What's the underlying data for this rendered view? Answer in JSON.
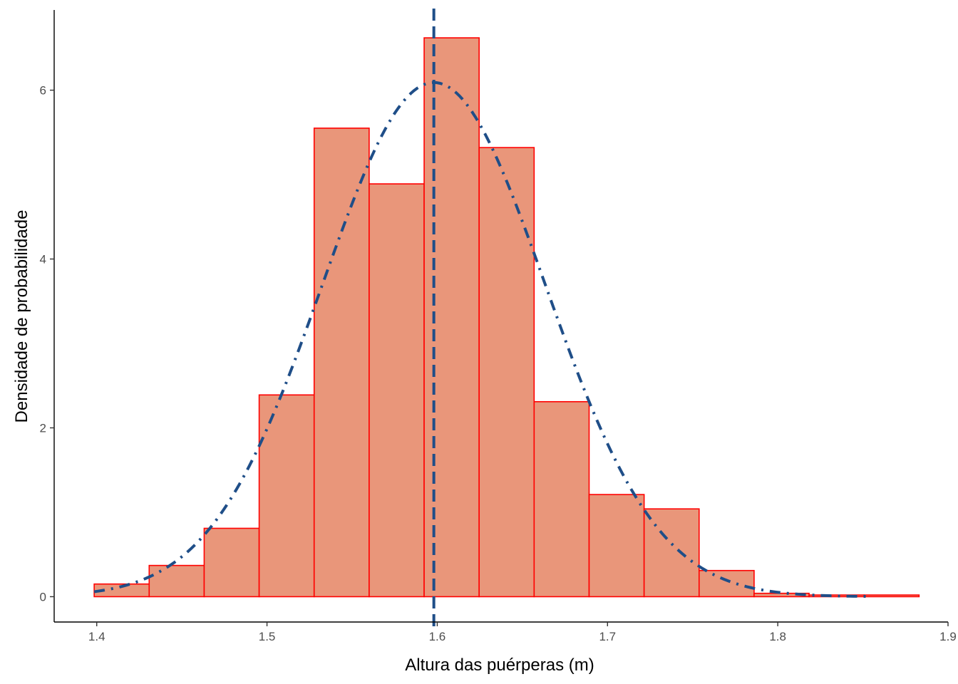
{
  "chart_data": {
    "type": "bar",
    "title": "",
    "xlabel": "Altura das puérperas (m)",
    "ylabel": "Densidade de probabilidade",
    "xlim": [
      1.375,
      1.9
    ],
    "ylim": [
      -0.3,
      6.95
    ],
    "x_ticks": [
      {
        "value": 1.4,
        "label": "1.4"
      },
      {
        "value": 1.5,
        "label": "1.5"
      },
      {
        "value": 1.6,
        "label": "1.6"
      },
      {
        "value": 1.7,
        "label": "1.7"
      },
      {
        "value": 1.8,
        "label": "1.8"
      },
      {
        "value": 1.9,
        "label": "1.9"
      }
    ],
    "y_ticks": [
      {
        "value": 0,
        "label": "0"
      },
      {
        "value": 2,
        "label": "2"
      },
      {
        "value": 4,
        "label": "4"
      },
      {
        "value": 6,
        "label": "6"
      }
    ],
    "histogram": {
      "bin_start": 1.3985,
      "bin_width": 0.0323,
      "densities": [
        0.15,
        0.37,
        0.81,
        2.39,
        5.55,
        4.89,
        6.62,
        5.32,
        2.31,
        1.21,
        1.04,
        0.31,
        0.04,
        0.02,
        0.02
      ],
      "fill": "#E9967A",
      "outline": "#FF0000"
    },
    "density_curve": {
      "mean": 1.598,
      "sd": 0.0655,
      "color": "#1F4E88",
      "linestyle": "dashdot"
    },
    "mean_line": {
      "x": 1.598,
      "color": "#1F4E88",
      "linestyle": "dashed"
    },
    "grid": false,
    "legend": "none"
  }
}
